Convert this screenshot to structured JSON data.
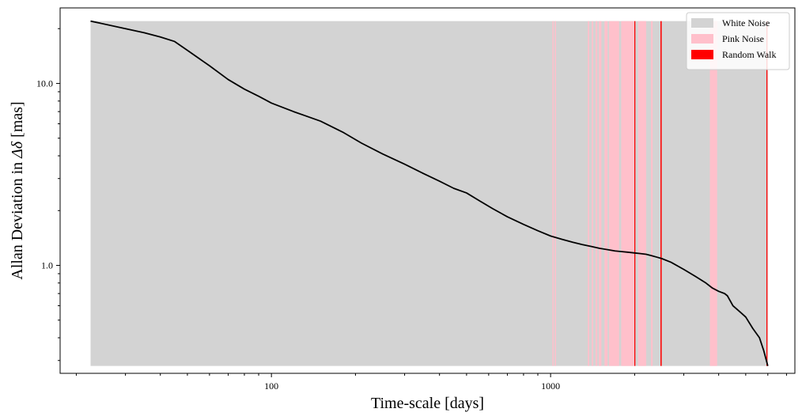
{
  "chart_data": {
    "type": "line",
    "title": "",
    "xlabel": "Time-scale [days]",
    "ylabel_prefix": "Allan Deviation in ",
    "ylabel_symbol": "Δδ",
    "ylabel_suffix": " [mas]",
    "xscale": "log",
    "yscale": "log",
    "xlim": [
      17.5,
      7500
    ],
    "ylim": [
      0.255,
      26
    ],
    "x_ticks": [
      100,
      1000
    ],
    "x_tick_labels": [
      "100",
      "1000"
    ],
    "y_ticks": [
      1.0,
      10.0
    ],
    "y_tick_labels": [
      "1.0",
      "10.0"
    ],
    "grid": false,
    "legend_position": "top-right",
    "legend": [
      {
        "label": "White Noise",
        "color": "#d3d3d3"
      },
      {
        "label": "Pink Noise",
        "color": "#ffc0cb"
      },
      {
        "label": "Random Walk",
        "color": "#ff0000"
      }
    ],
    "band_range": {
      "ymin": 0.28,
      "ymax": 22
    },
    "noise_bands": [
      {
        "type": "White Noise",
        "x0": 22.5,
        "x1": 6000
      },
      {
        "type": "Pink Noise",
        "x0": 1015,
        "x1": 1025
      },
      {
        "type": "Pink Noise",
        "x0": 1035,
        "x1": 1045
      },
      {
        "type": "Pink Noise",
        "x0": 1360,
        "x1": 1375
      },
      {
        "type": "Pink Noise",
        "x0": 1405,
        "x1": 1420
      },
      {
        "type": "Pink Noise",
        "x0": 1450,
        "x1": 1470
      },
      {
        "type": "Pink Noise",
        "x0": 1490,
        "x1": 1520
      },
      {
        "type": "Pink Noise",
        "x0": 1560,
        "x1": 1600
      },
      {
        "type": "Pink Noise",
        "x0": 1620,
        "x1": 1760
      },
      {
        "type": "Pink Noise",
        "x0": 1790,
        "x1": 1990
      },
      {
        "type": "Pink Noise",
        "x0": 2060,
        "x1": 2200
      },
      {
        "type": "Pink Noise",
        "x0": 2290,
        "x1": 2320
      },
      {
        "type": "Pink Noise",
        "x0": 3720,
        "x1": 3950
      },
      {
        "type": "Random Walk",
        "x0": 1995,
        "x1": 2012
      },
      {
        "type": "Random Walk",
        "x0": 2475,
        "x1": 2500
      },
      {
        "type": "Random Walk",
        "x0": 5930,
        "x1": 5980
      }
    ],
    "series": [
      {
        "x": [
          22.5,
          30,
          35,
          40,
          45,
          50,
          60,
          70,
          80,
          90,
          100,
          120,
          150,
          180,
          210,
          250,
          300,
          350,
          400,
          450,
          500,
          560,
          620,
          700,
          800,
          900,
          1000,
          1100,
          1200,
          1300,
          1400,
          1500,
          1600,
          1700,
          1800,
          1900,
          2000,
          2100,
          2200,
          2300,
          2400,
          2500,
          2700,
          3000,
          3300,
          3600,
          3800,
          4000,
          4200,
          4300,
          4500,
          4800,
          5000,
          5300,
          5600,
          5800,
          6000
        ],
        "y": [
          22,
          20,
          19,
          18,
          17,
          15.2,
          12.5,
          10.5,
          9.3,
          8.5,
          7.8,
          7,
          6.2,
          5.4,
          4.7,
          4.1,
          3.6,
          3.2,
          2.9,
          2.65,
          2.5,
          2.25,
          2.05,
          1.85,
          1.68,
          1.55,
          1.45,
          1.39,
          1.34,
          1.3,
          1.27,
          1.24,
          1.22,
          1.2,
          1.19,
          1.18,
          1.17,
          1.16,
          1.15,
          1.13,
          1.11,
          1.09,
          1.04,
          0.95,
          0.87,
          0.8,
          0.75,
          0.72,
          0.7,
          0.68,
          0.6,
          0.55,
          0.52,
          0.45,
          0.4,
          0.34,
          0.28
        ]
      }
    ]
  }
}
